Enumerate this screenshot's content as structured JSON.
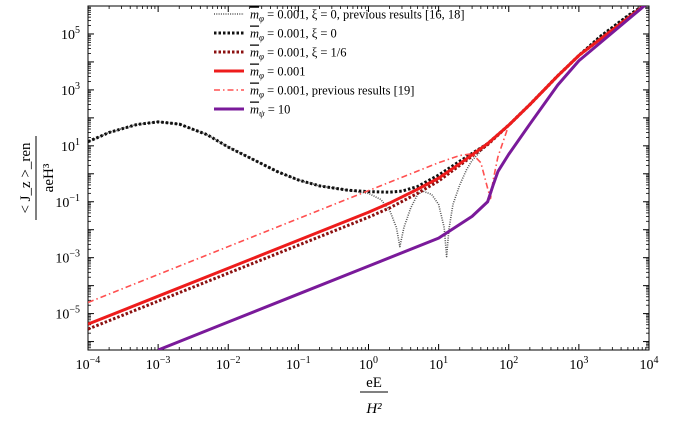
{
  "chart_data": {
    "type": "line",
    "title": "",
    "xscale": "log",
    "yscale": "log",
    "xlim": [
      0.0001,
      10000
    ],
    "ylim": [
      5e-07,
      1000000
    ],
    "grid": false,
    "legend_position": "top-center",
    "xlabel": {
      "numerator": "eE",
      "denominator": "H²"
    },
    "ylabel": {
      "numerator": "< J_z >_ren",
      "denominator": "aeH³"
    },
    "x_ticks": [
      {
        "value": 0.0001,
        "base": "10",
        "exp": "−4"
      },
      {
        "value": 0.001,
        "base": "10",
        "exp": "−3"
      },
      {
        "value": 0.01,
        "base": "10",
        "exp": "−2"
      },
      {
        "value": 0.1,
        "base": "10",
        "exp": "−1"
      },
      {
        "value": 1,
        "base": "10",
        "exp": "0"
      },
      {
        "value": 10,
        "base": "10",
        "exp": "1"
      },
      {
        "value": 100,
        "base": "10",
        "exp": "2"
      },
      {
        "value": 1000,
        "base": "10",
        "exp": "3"
      },
      {
        "value": 10000,
        "base": "10",
        "exp": "4"
      }
    ],
    "y_ticks": [
      {
        "value": 1e-05,
        "base": "10",
        "exp": "−5"
      },
      {
        "value": 0.001,
        "base": "10",
        "exp": "−3"
      },
      {
        "value": 0.1,
        "base": "10",
        "exp": "−1"
      },
      {
        "value": 10,
        "base": "10",
        "exp": "1"
      },
      {
        "value": 1000,
        "base": "10",
        "exp": "3"
      },
      {
        "value": 100000,
        "base": "10",
        "exp": "5"
      }
    ],
    "series": [
      {
        "name": "m̄_φ = 0.001,  ξ = 0,  previous results [16, 18]",
        "legend_parts": {
          "sym": "m",
          "sub": "φ",
          "rest": " = 0.001,  ξ = 0,  previous results [16, 18]"
        },
        "color": "#555555",
        "style": "dense-dotted",
        "x": [
          0.0001,
          0.0002,
          0.0005,
          0.001,
          0.002,
          0.005,
          0.01,
          0.02,
          0.05,
          0.1,
          0.2,
          0.5,
          1,
          1.5,
          2,
          2.5,
          2.8,
          3.2,
          4,
          5,
          6,
          8,
          10,
          12,
          13,
          14,
          16,
          20,
          25,
          30,
          40,
          50,
          70,
          100,
          200,
          500,
          1000,
          2000,
          5000,
          10000
        ],
        "y": [
          14,
          30,
          58,
          72,
          60,
          25,
          9,
          3.8,
          1.2,
          0.6,
          0.37,
          0.26,
          0.2,
          0.12,
          0.05,
          0.012,
          0.0025,
          0.012,
          0.06,
          0.18,
          0.24,
          0.18,
          0.08,
          0.012,
          0.0011,
          0.01,
          0.08,
          0.4,
          1.4,
          3,
          6.5,
          11,
          25,
          55,
          300,
          3200,
          17000,
          80000,
          450000,
          1400000
        ]
      },
      {
        "name": "m̄_φ = 0.001,  ξ = 0",
        "legend_parts": {
          "sym": "m",
          "sub": "φ",
          "rest": " = 0.001,  ξ = 0"
        },
        "color": "#111111",
        "style": "dotted",
        "x": [
          0.0001,
          0.0002,
          0.0005,
          0.001,
          0.002,
          0.005,
          0.01,
          0.02,
          0.05,
          0.1,
          0.2,
          0.5,
          1,
          2,
          3,
          5,
          10,
          20,
          50,
          100,
          200,
          500,
          1000,
          2000,
          5000,
          10000
        ],
        "y": [
          14,
          30,
          58,
          72,
          60,
          25,
          9,
          3.8,
          1.2,
          0.6,
          0.37,
          0.26,
          0.23,
          0.22,
          0.24,
          0.35,
          0.9,
          2.8,
          12,
          55,
          300,
          3200,
          17000,
          80000,
          450000,
          1400000
        ]
      },
      {
        "name": "m̄_φ = 0.001,  ξ = 1/6",
        "legend_parts": {
          "sym": "m",
          "sub": "φ",
          "rest": " = 0.001,  ξ = 1/6"
        },
        "color": "#8b1010",
        "style": "dotted",
        "x": [
          0.0001,
          0.001,
          0.01,
          0.1,
          1,
          2,
          5,
          10,
          20,
          50,
          100,
          200,
          500,
          1000,
          10000
        ],
        "y": [
          2.8e-06,
          2.8e-05,
          0.00028,
          0.0028,
          0.028,
          0.06,
          0.2,
          0.55,
          2,
          11,
          55,
          300,
          3200,
          17000,
          1400000
        ]
      },
      {
        "name": "m̄_φ = 0.001",
        "legend_parts": {
          "sym": "m",
          "sub": "φ",
          "rest": " = 0.001"
        },
        "color": "#ee1c1c",
        "style": "solid-thick",
        "x": [
          0.0001,
          0.001,
          0.01,
          0.1,
          1,
          2,
          5,
          10,
          20,
          50,
          100,
          200,
          500,
          1000,
          10000
        ],
        "y": [
          4.2e-06,
          4.2e-05,
          0.00042,
          0.0042,
          0.042,
          0.09,
          0.28,
          0.7,
          2.3,
          12,
          55,
          300,
          3200,
          17000,
          1400000
        ]
      },
      {
        "name": "m̄_φ = 0.001, previous results [19]",
        "legend_parts": {
          "sym": "m",
          "sub": "φ",
          "rest": " = 0.001, previous results [19]"
        },
        "color": "#ff5050",
        "style": "dash-dot",
        "x": [
          0.0001,
          0.001,
          0.01,
          0.1,
          1,
          10,
          20,
          30,
          40,
          50,
          55,
          60,
          70,
          100,
          200,
          500,
          1000,
          10000
        ],
        "y": [
          2.5e-05,
          0.00025,
          0.0025,
          0.025,
          0.25,
          2.5,
          4.5,
          5.2,
          2.5,
          0.3,
          0.13,
          0.6,
          4,
          55,
          300,
          3200,
          17000,
          1400000
        ]
      },
      {
        "name": "m̄_ψ = 10",
        "legend_parts": {
          "sym": "m",
          "sub": "ψ",
          "rest": " = 10"
        },
        "color": "#7a1a9a",
        "style": "solid-thick",
        "x": [
          0.001,
          0.01,
          0.1,
          1,
          10,
          30,
          50,
          60,
          70,
          100,
          200,
          500,
          1000,
          10000
        ],
        "y": [
          5e-07,
          5e-06,
          5e-05,
          0.0005,
          0.005,
          0.03,
          0.1,
          0.4,
          1.2,
          5,
          60,
          1500,
          11000,
          1400000
        ]
      }
    ]
  }
}
